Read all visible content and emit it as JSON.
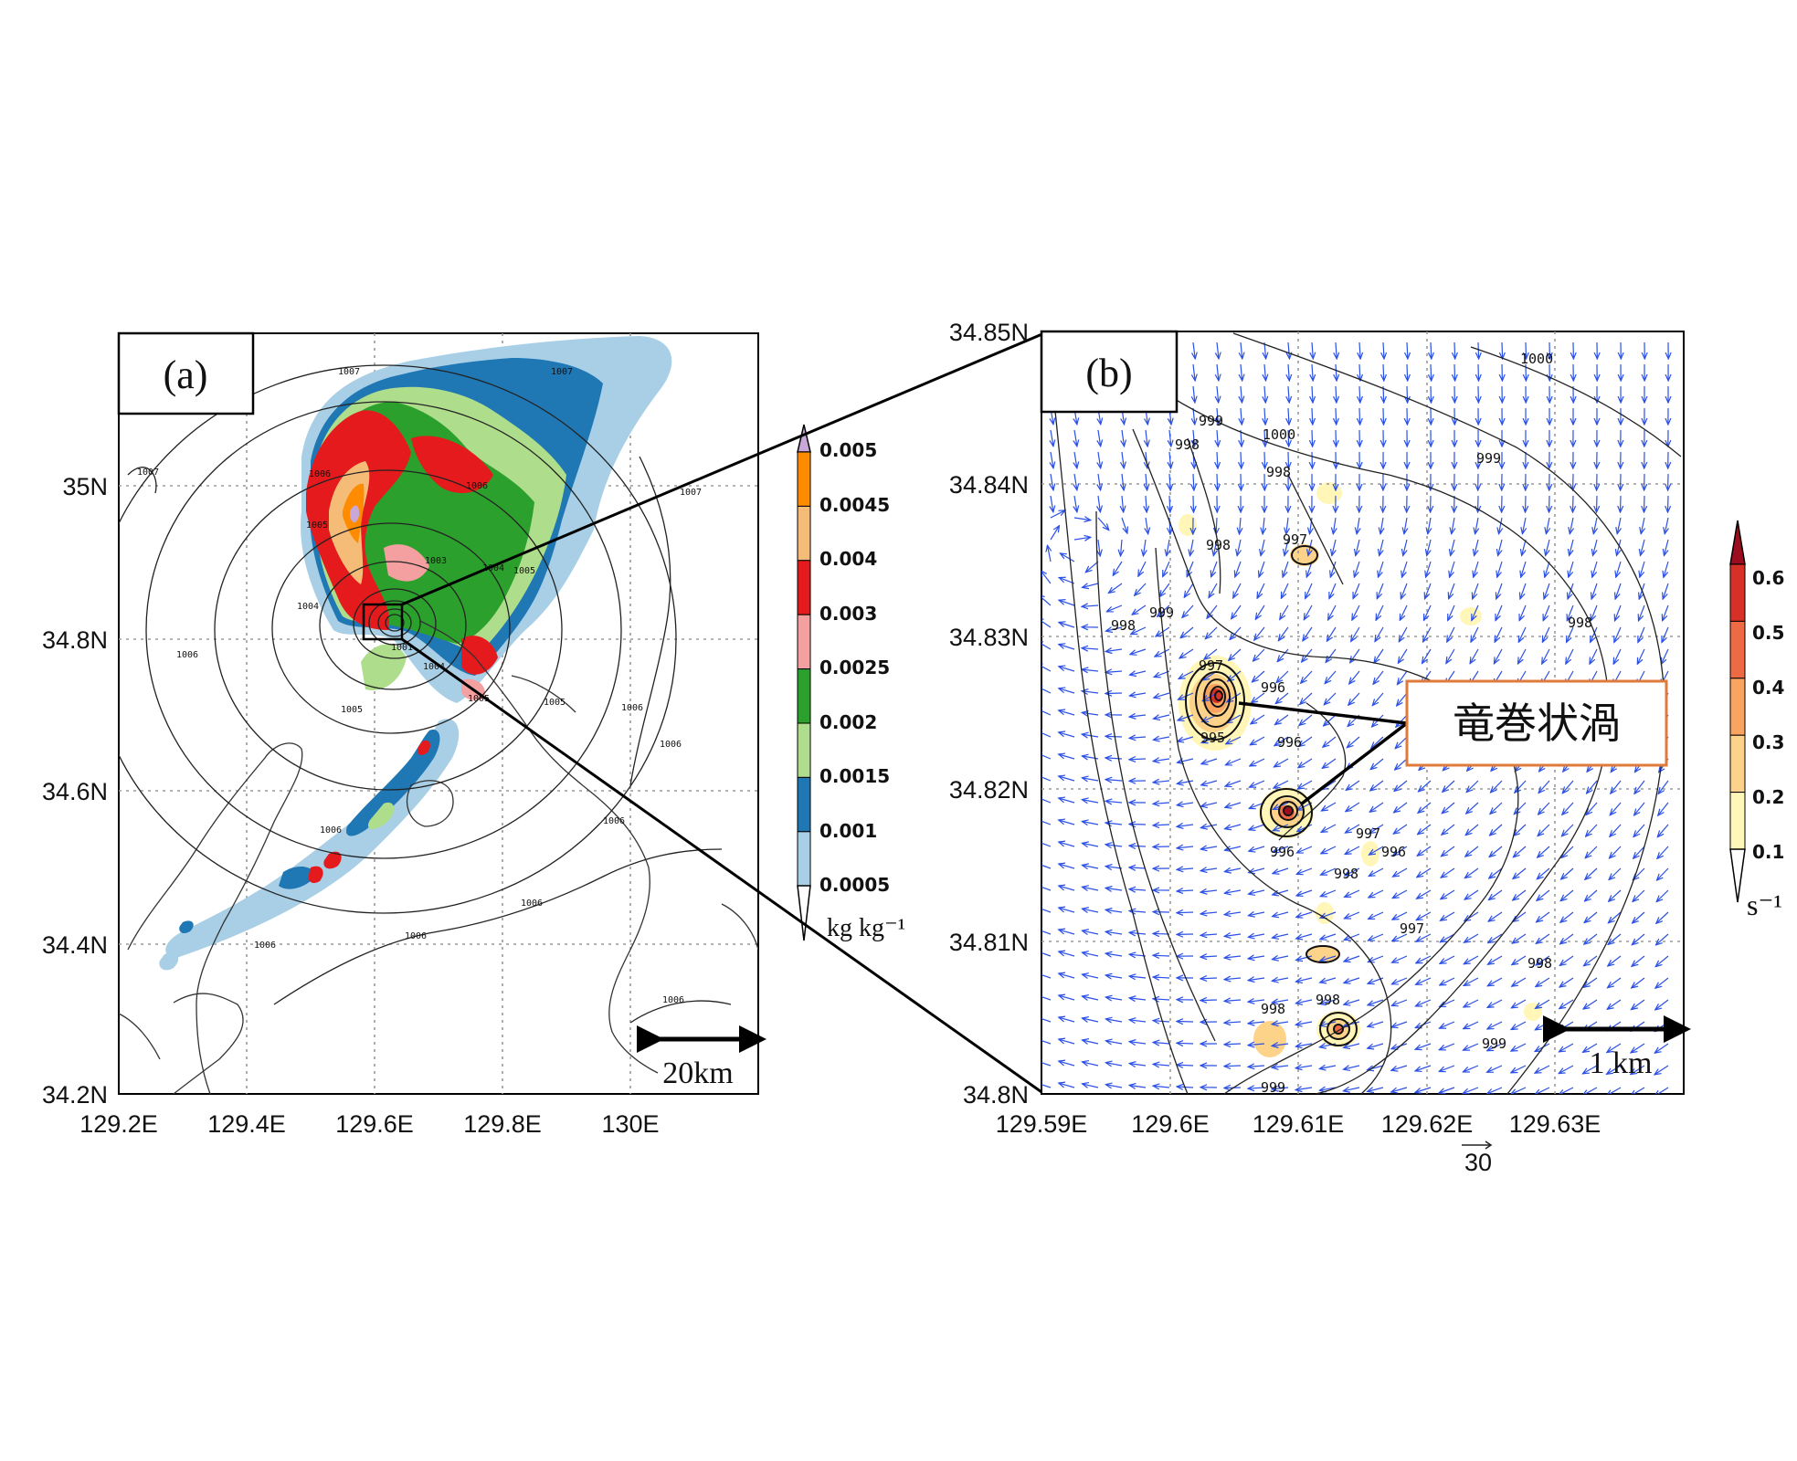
{
  "panel_a": {
    "label": "(a)",
    "lat_ticks": [
      "35N",
      "34.8N",
      "34.6N",
      "34.4N",
      "34.2N"
    ],
    "lon_ticks": [
      "129.2E",
      "129.4E",
      "129.6E",
      "129.8E",
      "130E"
    ],
    "contour_labels": [
      "1007",
      "1007",
      "1007",
      "1007",
      "1006",
      "1006",
      "1005",
      "1005",
      "1004",
      "1004",
      "1003",
      "1001",
      "1004",
      "1005",
      "1006",
      "1005",
      "1005",
      "1006",
      "1006",
      "1006",
      "1006",
      "1006",
      "1006",
      "1006",
      "1006",
      "1007"
    ],
    "scale_label": "20km",
    "colorbar": {
      "levels": [
        "0.005",
        "0.0045",
        "0.004",
        "0.003",
        "0.0025",
        "0.002",
        "0.0015",
        "0.001",
        "0.0005"
      ],
      "colors": [
        "#ff8c00",
        "#f5bc78",
        "#e41a1c",
        "#f4a0a0",
        "#2ca02c",
        "#aedd8c",
        "#1f77b4",
        "#a8cfe6"
      ],
      "top_color": "#c8a8d8",
      "units": "kg kg⁻¹"
    }
  },
  "panel_b": {
    "label": "(b)",
    "lat_ticks": [
      "34.85N",
      "34.84N",
      "34.83N",
      "34.82N",
      "34.81N",
      "34.8N"
    ],
    "lon_ticks": [
      "129.59E",
      "129.6E",
      "129.61E",
      "129.62E",
      "129.63E"
    ],
    "contour_labels": [
      "1000",
      "999",
      "1000",
      "999",
      "998",
      "998",
      "998",
      "997",
      "999",
      "998",
      "998",
      "997",
      "996",
      "995",
      "996",
      "996",
      "997",
      "996",
      "998",
      "997",
      "998",
      "998",
      "998",
      "999",
      "999"
    ],
    "scale_label": "1 km",
    "vector_ref": "30",
    "annotation": "竜巻状渦",
    "colorbar": {
      "levels": [
        "0.6",
        "0.5",
        "0.4",
        "0.3",
        "0.2",
        "0.1"
      ],
      "colors": [
        "#d73027",
        "#ee6a45",
        "#f9a460",
        "#fdd38a",
        "#fff6b8"
      ],
      "top_color": "#9b0d1f",
      "bottom_color": "#ffffff",
      "units": "s⁻¹"
    }
  },
  "colors": {
    "vectors": "#2b50e6",
    "annotation_border": "#e07a3a"
  }
}
